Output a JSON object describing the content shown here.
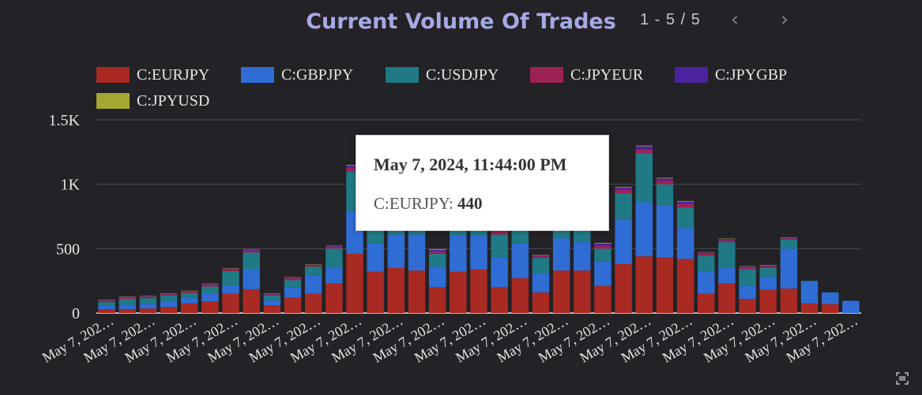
{
  "header": {
    "title": "Current Volume Of Trades",
    "pager": "1 - 5 / 5",
    "prev_icon": "chevron-left-icon",
    "next_icon": "chevron-right-icon"
  },
  "tooltip": {
    "date": "May 7, 2024, 11:44:00 PM",
    "series": "C:EURJPY",
    "value": "440"
  },
  "fullscreen_icon": "fullscreen-icon",
  "chart_data": {
    "type": "bar",
    "stacked": true,
    "title": "Current Volume Of Trades",
    "ylim": [
      0,
      1500
    ],
    "yticks": [
      "0",
      "500",
      "1K",
      "1.5K"
    ],
    "grid": true,
    "legend_position": "top",
    "x_tick_label": "May 7, 202…",
    "series": [
      {
        "name": "C:EURJPY",
        "color": "#a82a22",
        "values": [
          30,
          30,
          35,
          45,
          75,
          90,
          150,
          185,
          60,
          120,
          150,
          230,
          460,
          320,
          350,
          330,
          200,
          320,
          340,
          200,
          270,
          160,
          330,
          330,
          210,
          380,
          440,
          430,
          420,
          150,
          230,
          110,
          180,
          190,
          75,
          70,
          0
        ]
      },
      {
        "name": "C:GBPJPY",
        "color": "#2f6dd5",
        "values": [
          30,
          35,
          35,
          45,
          45,
          60,
          65,
          155,
          40,
          80,
          140,
          120,
          330,
          220,
          260,
          280,
          160,
          280,
          260,
          230,
          270,
          150,
          250,
          220,
          190,
          350,
          420,
          410,
          240,
          170,
          120,
          100,
          100,
          310,
          170,
          90,
          95
        ]
      },
      {
        "name": "C:USDJPY",
        "color": "#1f7a85",
        "values": [
          25,
          45,
          45,
          45,
          35,
          55,
          110,
          130,
          35,
          55,
          70,
          150,
          310,
          190,
          160,
          150,
          100,
          190,
          175,
          180,
          190,
          120,
          180,
          160,
          100,
          200,
          380,
          160,
          160,
          125,
          200,
          130,
          70,
          70,
          5,
          0,
          0
        ]
      },
      {
        "name": "C:JPYEUR",
        "color": "#9c2256",
        "values": [
          10,
          10,
          10,
          10,
          10,
          15,
          15,
          15,
          10,
          15,
          10,
          15,
          30,
          25,
          20,
          25,
          20,
          25,
          25,
          25,
          25,
          15,
          20,
          25,
          25,
          30,
          30,
          30,
          30,
          15,
          15,
          15,
          15,
          10,
          0,
          0,
          0
        ]
      },
      {
        "name": "C:JPYGBP",
        "color": "#4a24a0",
        "values": [
          5,
          5,
          5,
          5,
          5,
          5,
          5,
          5,
          5,
          5,
          5,
          5,
          15,
          10,
          10,
          10,
          10,
          10,
          10,
          10,
          10,
          5,
          10,
          10,
          15,
          15,
          25,
          15,
          15,
          10,
          10,
          5,
          5,
          5,
          0,
          0,
          0
        ]
      },
      {
        "name": "C:JPYUSD",
        "color": "#a5a733",
        "values": [
          3,
          3,
          3,
          3,
          3,
          3,
          3,
          3,
          3,
          3,
          3,
          3,
          5,
          5,
          5,
          5,
          5,
          5,
          5,
          5,
          5,
          3,
          5,
          5,
          5,
          5,
          5,
          5,
          5,
          3,
          3,
          3,
          3,
          3,
          0,
          0,
          0
        ]
      }
    ]
  }
}
